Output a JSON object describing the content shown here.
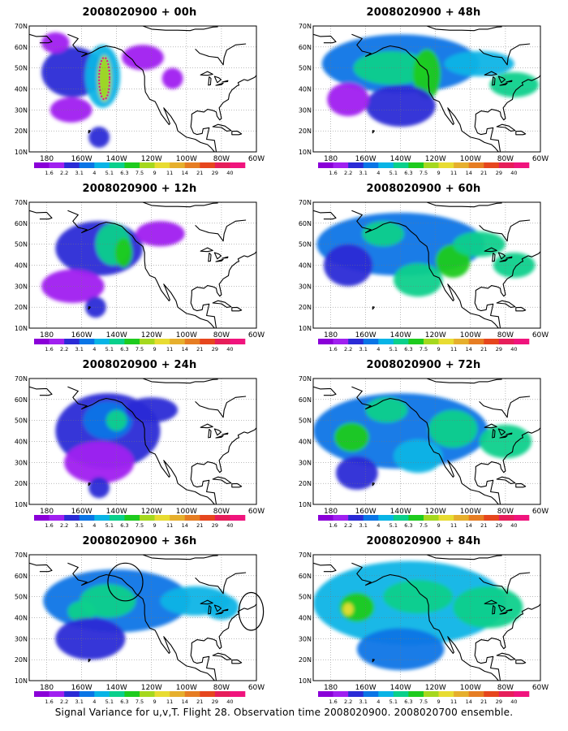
{
  "panels": [
    {
      "id": "p00",
      "title": "2008020900 + 00h",
      "blobs": [
        {
          "lon": -165,
          "lat": 48,
          "rx": 18,
          "ry": 12,
          "level": 2
        },
        {
          "lon": -148,
          "lat": 46,
          "rx": 10,
          "ry": 15,
          "level": 4
        },
        {
          "lon": -147,
          "lat": 45,
          "rx": 4,
          "ry": 11,
          "level": 7
        },
        {
          "lon": -166,
          "lat": 30,
          "rx": 12,
          "ry": 6,
          "level": 1
        },
        {
          "lon": -150,
          "lat": 17,
          "rx": 6,
          "ry": 5,
          "level": 2
        },
        {
          "lon": -125,
          "lat": 55,
          "rx": 12,
          "ry": 6,
          "level": 1
        },
        {
          "lon": -108,
          "lat": 45,
          "rx": 6,
          "ry": 5,
          "level": 1
        },
        {
          "lon": -175,
          "lat": 62,
          "rx": 8,
          "ry": 5,
          "level": 1
        }
      ],
      "markers": [
        {
          "type": "dotted-outline",
          "lon": -147,
          "lat": 45,
          "rx": 3,
          "ry": 10
        }
      ]
    },
    {
      "id": "p48",
      "title": "2008020900 + 48h",
      "blobs": [
        {
          "lon": -140,
          "lat": 52,
          "rx": 45,
          "ry": 14,
          "level": 3
        },
        {
          "lon": -145,
          "lat": 50,
          "rx": 22,
          "ry": 8,
          "level": 5
        },
        {
          "lon": -125,
          "lat": 47,
          "rx": 8,
          "ry": 12,
          "level": 6
        },
        {
          "lon": -95,
          "lat": 52,
          "rx": 20,
          "ry": 6,
          "level": 4
        },
        {
          "lon": -75,
          "lat": 42,
          "rx": 14,
          "ry": 6,
          "level": 5
        },
        {
          "lon": -140,
          "lat": 32,
          "rx": 20,
          "ry": 10,
          "level": 2
        },
        {
          "lon": -170,
          "lat": 35,
          "rx": 12,
          "ry": 8,
          "level": 1
        }
      ],
      "markers": []
    },
    {
      "id": "p12",
      "title": "2008020900 + 12h",
      "blobs": [
        {
          "lon": -150,
          "lat": 48,
          "rx": 25,
          "ry": 13,
          "level": 2
        },
        {
          "lon": -142,
          "lat": 50,
          "rx": 10,
          "ry": 10,
          "level": 5
        },
        {
          "lon": -136,
          "lat": 46,
          "rx": 5,
          "ry": 7,
          "level": 6
        },
        {
          "lon": -165,
          "lat": 30,
          "rx": 18,
          "ry": 8,
          "level": 1
        },
        {
          "lon": -152,
          "lat": 20,
          "rx": 6,
          "ry": 5,
          "level": 2
        },
        {
          "lon": -115,
          "lat": 55,
          "rx": 14,
          "ry": 6,
          "level": 1
        }
      ],
      "markers": []
    },
    {
      "id": "p60",
      "title": "2008020900 + 60h",
      "blobs": [
        {
          "lon": -140,
          "lat": 50,
          "rx": 48,
          "ry": 15,
          "level": 3
        },
        {
          "lon": -150,
          "lat": 55,
          "rx": 12,
          "ry": 6,
          "level": 5
        },
        {
          "lon": -110,
          "lat": 42,
          "rx": 10,
          "ry": 8,
          "level": 6
        },
        {
          "lon": -95,
          "lat": 50,
          "rx": 15,
          "ry": 6,
          "level": 5
        },
        {
          "lon": -75,
          "lat": 40,
          "rx": 12,
          "ry": 6,
          "level": 5
        },
        {
          "lon": -130,
          "lat": 33,
          "rx": 14,
          "ry": 8,
          "level": 5
        },
        {
          "lon": -170,
          "lat": 40,
          "rx": 14,
          "ry": 10,
          "level": 2
        }
      ],
      "markers": []
    },
    {
      "id": "p24",
      "title": "2008020900 + 24h",
      "blobs": [
        {
          "lon": -145,
          "lat": 45,
          "rx": 30,
          "ry": 18,
          "level": 2
        },
        {
          "lon": -145,
          "lat": 50,
          "rx": 14,
          "ry": 9,
          "level": 3
        },
        {
          "lon": -140,
          "lat": 50,
          "rx": 6,
          "ry": 5,
          "level": 5
        },
        {
          "lon": -120,
          "lat": 55,
          "rx": 15,
          "ry": 6,
          "level": 2
        },
        {
          "lon": -150,
          "lat": 30,
          "rx": 20,
          "ry": 10,
          "level": 1
        },
        {
          "lon": -150,
          "lat": 18,
          "rx": 6,
          "ry": 5,
          "level": 2
        }
      ],
      "markers": []
    },
    {
      "id": "p72",
      "title": "2008020900 + 72h",
      "blobs": [
        {
          "lon": -140,
          "lat": 45,
          "rx": 50,
          "ry": 18,
          "level": 3
        },
        {
          "lon": -168,
          "lat": 42,
          "rx": 10,
          "ry": 7,
          "level": 6
        },
        {
          "lon": -148,
          "lat": 55,
          "rx": 12,
          "ry": 6,
          "level": 5
        },
        {
          "lon": -110,
          "lat": 46,
          "rx": 14,
          "ry": 9,
          "level": 5
        },
        {
          "lon": -80,
          "lat": 40,
          "rx": 15,
          "ry": 8,
          "level": 5
        },
        {
          "lon": -130,
          "lat": 33,
          "rx": 14,
          "ry": 8,
          "level": 4
        },
        {
          "lon": -165,
          "lat": 25,
          "rx": 12,
          "ry": 8,
          "level": 2
        }
      ],
      "markers": []
    },
    {
      "id": "p36",
      "title": "2008020900 + 36h",
      "blobs": [
        {
          "lon": -140,
          "lat": 48,
          "rx": 42,
          "ry": 15,
          "level": 3
        },
        {
          "lon": -145,
          "lat": 48,
          "rx": 16,
          "ry": 8,
          "level": 5
        },
        {
          "lon": -160,
          "lat": 43,
          "rx": 8,
          "ry": 5,
          "level": 5
        },
        {
          "lon": -95,
          "lat": 48,
          "rx": 20,
          "ry": 7,
          "level": 4
        },
        {
          "lon": -80,
          "lat": 45,
          "rx": 10,
          "ry": 6,
          "level": 4
        },
        {
          "lon": -155,
          "lat": 30,
          "rx": 20,
          "ry": 10,
          "level": 2
        }
      ],
      "markers": [
        {
          "type": "circle",
          "lon": -135,
          "lat": 57,
          "rx": 10,
          "ry": 9
        },
        {
          "type": "circle",
          "lon": -63,
          "lat": 43,
          "rx": 7,
          "ry": 9
        }
      ]
    },
    {
      "id": "p84",
      "title": "2008020900 + 84h",
      "blobs": [
        {
          "lon": -135,
          "lat": 47,
          "rx": 55,
          "ry": 20,
          "level": 4
        },
        {
          "lon": -165,
          "lat": 45,
          "rx": 10,
          "ry": 7,
          "level": 6
        },
        {
          "lon": -170,
          "lat": 44,
          "rx": 3,
          "ry": 3,
          "level": 8
        },
        {
          "lon": -130,
          "lat": 50,
          "rx": 20,
          "ry": 8,
          "level": 5
        },
        {
          "lon": -90,
          "lat": 45,
          "rx": 20,
          "ry": 10,
          "level": 5
        },
        {
          "lon": -140,
          "lat": 25,
          "rx": 25,
          "ry": 10,
          "level": 3
        }
      ],
      "markers": []
    }
  ],
  "axes": {
    "lon_min": -190,
    "lon_max": -60,
    "lat_min": 10,
    "lat_max": 70,
    "lon_ticks": [
      "180",
      "160W",
      "140W",
      "120W",
      "100W",
      "80W",
      "60W"
    ],
    "lat_ticks": [
      "70N",
      "60N",
      "50N",
      "40N",
      "30N",
      "20N",
      "10N"
    ]
  },
  "colorbar": {
    "labels": [
      "1.6",
      "2.2",
      "3.1",
      "4",
      "5.1",
      "6.3",
      "7.5",
      "9",
      "11",
      "14",
      "21",
      "29",
      "40"
    ],
    "colors": [
      "#8a00d8",
      "#a020f0",
      "#2b2bd6",
      "#0a75e6",
      "#08b4e6",
      "#0ad08c",
      "#1ecb1e",
      "#a5d81e",
      "#e8dc32",
      "#e6af2d",
      "#e67d23",
      "#e6461e",
      "#e61e5a",
      "#f0147d"
    ]
  },
  "footer": "Signal Variance for u,v,T. Flight 28. Observation time 2008020900. 2008020700 ensemble."
}
